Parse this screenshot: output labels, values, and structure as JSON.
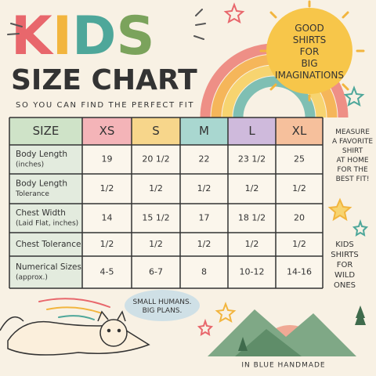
{
  "header": {
    "title_letters": [
      "K",
      "I",
      "D",
      "S"
    ],
    "title_colors": [
      "#e8676c",
      "#f2b53e",
      "#4ea79a",
      "#7ba35c"
    ],
    "subtitle": "SIZE CHART",
    "tagline": "SO YOU CAN FIND THE PERFECT FIT"
  },
  "sun_text": [
    "GOOD",
    "SHIRTS",
    "FOR",
    "BIG",
    "IMAGINATIONS"
  ],
  "side_note": [
    "MEASURE",
    "A FAVORITE",
    "SHIRT",
    "AT HOME",
    "FOR THE",
    "BEST FIT!"
  ],
  "side_note_2": [
    "KIDS",
    "SHIRTS",
    "FOR",
    "WILD",
    "ONES"
  ],
  "bubble": [
    "SMALL HUMANS.",
    "BIG PLANS."
  ],
  "footer": "IN BLUE HANDMADE",
  "table": {
    "header": [
      "SIZE",
      "XS",
      "S",
      "M",
      "L",
      "XL"
    ],
    "header_colors": [
      "#cfe3c8",
      "#f4b4b8",
      "#f7d68b",
      "#a9d7d0",
      "#cfbadc",
      "#f6c09c"
    ],
    "rows": [
      {
        "label": [
          "Body Length",
          "(inches)"
        ],
        "values": [
          "19",
          "20 1/2",
          "22",
          "23 1/2",
          "25"
        ]
      },
      {
        "label": [
          "Body Length",
          "Tolerance"
        ],
        "values": [
          "1/2",
          "1/2",
          "1/2",
          "1/2",
          "1/2"
        ]
      },
      {
        "label": [
          "Chest Width",
          "(Laid Flat, inches)"
        ],
        "values": [
          "14",
          "15 1/2",
          "17",
          "18 1/2",
          "20"
        ]
      },
      {
        "label": [
          "Chest Tolerance"
        ],
        "values": [
          "1/2",
          "1/2",
          "1/2",
          "1/2",
          "1/2"
        ]
      },
      {
        "label": [
          "Numerical Sizes",
          "(approx.)"
        ],
        "values": [
          "4-5",
          "6-7",
          "8",
          "10-12",
          "14-16"
        ]
      }
    ]
  }
}
